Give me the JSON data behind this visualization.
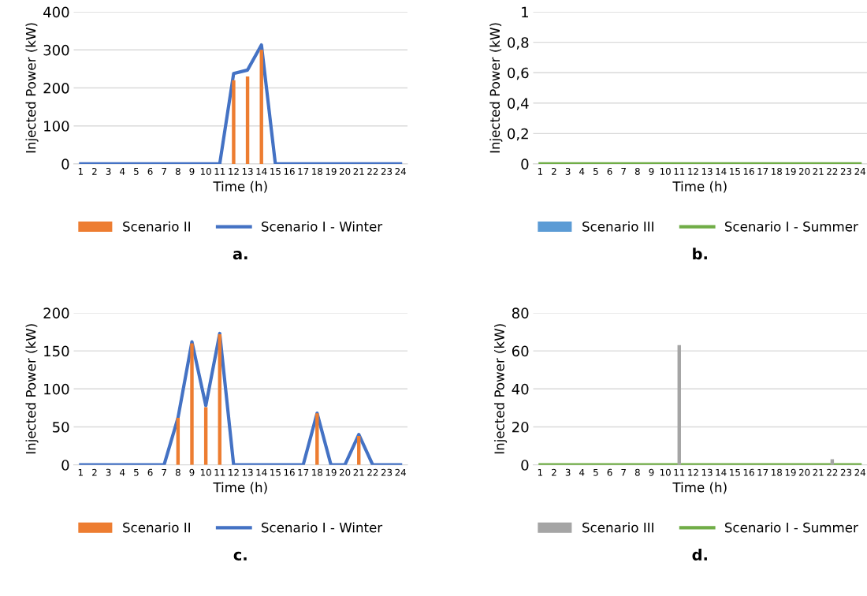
{
  "chart_data": [
    {
      "type": "bar",
      "categories": [
        "1",
        "2",
        "3",
        "4",
        "5",
        "6",
        "7",
        "8",
        "9",
        "10",
        "11",
        "12",
        "13",
        "14",
        "15",
        "16",
        "17",
        "18",
        "19",
        "20",
        "21",
        "22",
        "23",
        "24"
      ],
      "xlabel": "Time (h)",
      "ylabel": "Injected Power (kW)",
      "ylim": [
        0,
        400
      ],
      "yticks": [
        0,
        100,
        200,
        300,
        400
      ],
      "grid": "y",
      "legend": "bottom",
      "annotations": [
        "a."
      ],
      "series": [
        {
          "name": "Scenario II",
          "type": "bar",
          "color": "#ed7d31",
          "values": [
            0,
            0,
            0,
            0,
            0,
            0,
            0,
            0,
            0,
            0,
            0,
            220,
            230,
            300,
            0,
            0,
            0,
            0,
            0,
            0,
            0,
            0,
            0,
            0
          ]
        },
        {
          "name": "Scenario I - Winter",
          "type": "line",
          "color": "#4472c4",
          "values": [
            0,
            0,
            0,
            0,
            0,
            0,
            0,
            0,
            0,
            0,
            0,
            238,
            247,
            313,
            0,
            0,
            0,
            0,
            0,
            0,
            0,
            0,
            0,
            0
          ]
        }
      ]
    },
    {
      "type": "bar",
      "categories": [
        "1",
        "2",
        "3",
        "4",
        "5",
        "6",
        "7",
        "8",
        "9",
        "10",
        "11",
        "12",
        "13",
        "14",
        "15",
        "16",
        "17",
        "18",
        "19",
        "20",
        "21",
        "22",
        "23",
        "24"
      ],
      "xlabel": "Time (h)",
      "ylabel": "Injected Power (kW)",
      "ylim": [
        0,
        1
      ],
      "yticks": [
        0,
        {
          "value": 0.2,
          "label": "0,2"
        },
        {
          "value": 0.4,
          "label": "0,4"
        },
        {
          "value": 0.6,
          "label": "0,6"
        },
        {
          "value": 0.8,
          "label": "0,8"
        },
        1
      ],
      "grid": "y",
      "legend": "bottom",
      "annotations": [
        "b."
      ],
      "series": [
        {
          "name": "Scenario III",
          "type": "bar",
          "color": "#5b9bd5",
          "values": [
            0,
            0,
            0,
            0,
            0,
            0,
            0,
            0,
            0,
            0,
            0,
            0,
            0,
            0,
            0,
            0,
            0,
            0,
            0,
            0,
            0,
            0,
            0,
            0
          ]
        },
        {
          "name": "Scenario I - Summer",
          "type": "line",
          "color": "#70ad47",
          "values": [
            0,
            0,
            0,
            0,
            0,
            0,
            0,
            0,
            0,
            0,
            0,
            0,
            0,
            0,
            0,
            0,
            0,
            0,
            0,
            0,
            0,
            0,
            0,
            0
          ]
        }
      ]
    },
    {
      "type": "bar",
      "categories": [
        "1",
        "2",
        "3",
        "4",
        "5",
        "6",
        "7",
        "8",
        "9",
        "10",
        "11",
        "12",
        "13",
        "14",
        "15",
        "16",
        "17",
        "18",
        "19",
        "20",
        "21",
        "22",
        "23",
        "24"
      ],
      "xlabel": "Time (h)",
      "ylabel": "Injected Power (kW)",
      "ylim": [
        0,
        200
      ],
      "yticks": [
        0,
        50,
        100,
        150,
        200
      ],
      "grid": "y",
      "legend": "bottom",
      "annotations": [
        "c."
      ],
      "series": [
        {
          "name": "Scenario II",
          "type": "bar",
          "color": "#ed7d31",
          "values": [
            0,
            0,
            0,
            0,
            0,
            0,
            0,
            62,
            160,
            76,
            172,
            0,
            0,
            0,
            0,
            0,
            0,
            68,
            0,
            0,
            38,
            0,
            0,
            0
          ]
        },
        {
          "name": "Scenario I - Winter",
          "type": "line",
          "color": "#4472c4",
          "values": [
            0,
            0,
            0,
            0,
            0,
            0,
            0,
            62,
            162,
            78,
            173,
            0,
            0,
            0,
            0,
            0,
            0,
            68,
            0,
            0,
            40,
            0,
            0,
            0
          ]
        }
      ]
    },
    {
      "type": "bar",
      "categories": [
        "1",
        "2",
        "3",
        "4",
        "5",
        "6",
        "7",
        "8",
        "9",
        "10",
        "11",
        "12",
        "13",
        "14",
        "15",
        "16",
        "17",
        "18",
        "19",
        "20",
        "21",
        "22",
        "23",
        "24"
      ],
      "xlabel": "Time (h)",
      "ylabel": "Injected Power (kW)",
      "ylim": [
        0,
        80
      ],
      "yticks": [
        0,
        20,
        40,
        60,
        80
      ],
      "grid": "y",
      "legend": "bottom",
      "annotations": [
        "d."
      ],
      "series": [
        {
          "name": "Scenario III",
          "type": "bar",
          "color": "#a5a5a5",
          "values": [
            0,
            0,
            0,
            0,
            0,
            0,
            0,
            0,
            0,
            0,
            63,
            0,
            0,
            0,
            0,
            0,
            0,
            0,
            0,
            0,
            0,
            3,
            0,
            0
          ]
        },
        {
          "name": "Scenario I - Summer",
          "type": "line",
          "color": "#70ad47",
          "values": [
            0,
            0,
            0,
            0,
            0,
            0,
            0,
            0,
            0,
            0,
            0,
            0,
            0,
            0,
            0,
            0,
            0,
            0,
            0,
            0,
            0,
            0,
            0,
            0
          ]
        }
      ]
    }
  ]
}
